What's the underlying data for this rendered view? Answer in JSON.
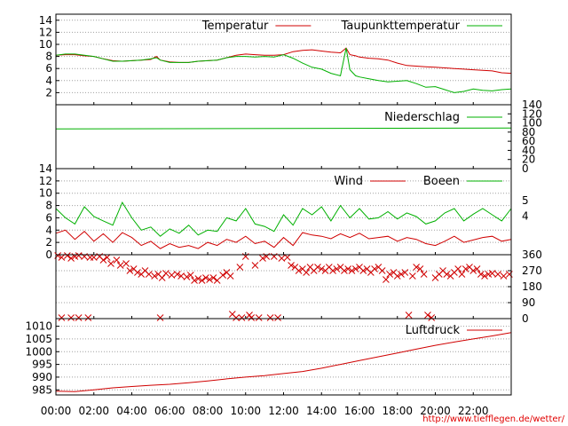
{
  "colors": {
    "red": "#d00000",
    "green": "#00b000",
    "grid": "#a0a0a0"
  },
  "source_url": "http://www.tiefflegen.de/wetter/",
  "x_tick_labels": [
    "00:00",
    "02:00",
    "04:00",
    "06:00",
    "08:00",
    "10:00",
    "12:00",
    "14:00",
    "16:00",
    "18:00",
    "20:00",
    "22:00"
  ],
  "chart_data": [
    {
      "type": "line",
      "xlim": [
        0,
        24
      ],
      "ylim": [
        0,
        15
      ],
      "y_ticks": [
        2,
        4,
        6,
        8,
        10,
        12,
        14
      ],
      "grid": true,
      "legend_position": "top-right",
      "x": [
        0,
        0.5,
        1,
        1.5,
        2,
        2.5,
        3,
        3.5,
        4,
        4.5,
        5,
        5.3,
        5.5,
        6,
        6.5,
        7,
        7.5,
        8,
        8.5,
        9,
        9.5,
        10,
        10.5,
        11,
        11.5,
        12,
        12.5,
        13,
        13.5,
        14,
        14.5,
        15,
        15.3,
        15.5,
        15.8,
        16,
        16.5,
        17,
        17.5,
        18,
        18.5,
        19,
        19.5,
        20,
        20.5,
        21,
        21.5,
        22,
        22.5,
        23,
        23.5,
        24
      ],
      "series": [
        {
          "name": "Temperatur",
          "color": "red",
          "values": [
            8.2,
            8.3,
            8.3,
            8.1,
            8.0,
            7.6,
            7.3,
            7.2,
            7.3,
            7.4,
            7.5,
            8.0,
            7.4,
            7.1,
            7.0,
            7.0,
            7.2,
            7.3,
            7.4,
            7.8,
            8.2,
            8.4,
            8.3,
            8.2,
            8.2,
            8.3,
            8.8,
            9.0,
            9.1,
            8.9,
            8.7,
            8.6,
            9.4,
            8.3,
            8.1,
            7.9,
            7.7,
            7.6,
            7.4,
            6.9,
            6.5,
            6.4,
            6.3,
            6.2,
            6.1,
            6.0,
            5.9,
            5.8,
            5.7,
            5.6,
            5.3,
            5.2
          ]
        },
        {
          "name": "Taupunkttemperatur",
          "color": "green",
          "values": [
            8.2,
            8.4,
            8.4,
            8.2,
            8.0,
            7.6,
            7.2,
            7.2,
            7.3,
            7.4,
            7.6,
            7.8,
            7.4,
            7.0,
            7.0,
            7.0,
            7.2,
            7.3,
            7.4,
            7.8,
            8.0,
            8.0,
            7.9,
            8.0,
            7.9,
            8.3,
            7.7,
            6.9,
            6.2,
            5.9,
            5.2,
            4.8,
            9.4,
            5.8,
            4.8,
            4.6,
            4.3,
            4.0,
            3.8,
            3.9,
            4.0,
            3.5,
            2.9,
            3.0,
            2.5,
            2.0,
            2.2,
            2.6,
            2.4,
            2.3,
            2.5,
            2.6
          ]
        }
      ]
    },
    {
      "type": "line",
      "xlim": [
        0,
        24
      ],
      "ylim": [
        0,
        140
      ],
      "y_ticks": [
        0,
        20,
        40,
        60,
        80,
        100,
        120,
        140
      ],
      "grid": false,
      "legend_position": "top-right",
      "x": [
        0,
        12,
        24
      ],
      "series": [
        {
          "name": "Niederschlag",
          "color": "green",
          "values": [
            87,
            88,
            89
          ]
        }
      ]
    },
    {
      "type": "line",
      "xlim": [
        0,
        24
      ],
      "ylim": [
        0,
        14
      ],
      "y_ticks": [
        0,
        2,
        4,
        6,
        8,
        10,
        12,
        14
      ],
      "y2_ticks": [
        4,
        5
      ],
      "grid": true,
      "legend_position": "top-right",
      "x": [
        0,
        0.5,
        1,
        1.5,
        2,
        2.5,
        3,
        3.5,
        4,
        4.5,
        5,
        5.5,
        6,
        6.5,
        7,
        7.5,
        8,
        8.5,
        9,
        9.5,
        10,
        10.5,
        11,
        11.5,
        12,
        12.5,
        13,
        13.5,
        14,
        14.5,
        15,
        15.5,
        16,
        16.5,
        17,
        17.5,
        18,
        18.5,
        19,
        19.5,
        20,
        20.5,
        21,
        21.5,
        22,
        22.5,
        23,
        23.5,
        24
      ],
      "series": [
        {
          "name": "Wind",
          "color": "red",
          "values": [
            3.5,
            4.0,
            2.5,
            3.8,
            2.2,
            3.4,
            2.0,
            3.6,
            2.8,
            1.5,
            2.2,
            1.0,
            1.8,
            1.2,
            1.5,
            1.0,
            2.0,
            1.5,
            2.5,
            2.0,
            3.0,
            1.8,
            2.2,
            1.2,
            2.8,
            1.5,
            3.6,
            3.2,
            3.0,
            2.6,
            3.4,
            2.8,
            3.5,
            2.6,
            2.8,
            3.0,
            2.2,
            2.8,
            2.5,
            1.8,
            1.5,
            2.2,
            3.0,
            2.0,
            2.4,
            2.8,
            3.0,
            2.2,
            2.5
          ]
        },
        {
          "name": "Boeen",
          "color": "green",
          "values": [
            7.5,
            6.0,
            5.0,
            7.8,
            6.2,
            5.5,
            4.8,
            8.5,
            6.0,
            4.0,
            4.5,
            3.0,
            4.2,
            3.5,
            4.8,
            3.2,
            4.0,
            3.8,
            6.0,
            5.5,
            7.5,
            5.0,
            4.6,
            3.8,
            6.5,
            4.8,
            7.5,
            6.5,
            7.8,
            5.5,
            8.0,
            6.0,
            7.5,
            5.8,
            6.0,
            7.0,
            5.8,
            6.8,
            6.2,
            5.0,
            5.5,
            6.8,
            7.5,
            5.5,
            6.6,
            7.5,
            6.5,
            5.5,
            7.5
          ]
        }
      ]
    },
    {
      "type": "scatter",
      "xlim": [
        0,
        24
      ],
      "ylim": [
        0,
        360
      ],
      "y_ticks": [
        0,
        90,
        180,
        270,
        360
      ],
      "grid": true,
      "marker": "x",
      "points": [
        [
          0.1,
          355
        ],
        [
          0.3,
          345
        ],
        [
          0.3,
          5
        ],
        [
          0.6,
          355
        ],
        [
          0.8,
          340
        ],
        [
          0.8,
          5
        ],
        [
          1.0,
          350
        ],
        [
          1.2,
          355
        ],
        [
          1.2,
          5
        ],
        [
          1.5,
          350
        ],
        [
          1.7,
          5
        ],
        [
          1.8,
          345
        ],
        [
          2.0,
          345
        ],
        [
          2.3,
          350
        ],
        [
          2.5,
          330
        ],
        [
          2.7,
          345
        ],
        [
          2.9,
          310
        ],
        [
          3.2,
          330
        ],
        [
          3.4,
          300
        ],
        [
          3.7,
          310
        ],
        [
          3.9,
          270
        ],
        [
          4.1,
          280
        ],
        [
          4.3,
          260
        ],
        [
          4.5,
          250
        ],
        [
          4.7,
          270
        ],
        [
          4.9,
          250
        ],
        [
          5.2,
          240
        ],
        [
          5.4,
          250
        ],
        [
          5.6,
          230
        ],
        [
          5.8,
          255
        ],
        [
          5.5,
          5
        ],
        [
          6.1,
          245
        ],
        [
          6.4,
          250
        ],
        [
          6.6,
          240
        ],
        [
          6.9,
          235
        ],
        [
          7.1,
          245
        ],
        [
          7.3,
          215
        ],
        [
          7.5,
          225
        ],
        [
          7.7,
          215
        ],
        [
          7.9,
          230
        ],
        [
          8.1,
          220
        ],
        [
          8.3,
          230
        ],
        [
          8.5,
          215
        ],
        [
          8.8,
          245
        ],
        [
          9.0,
          260
        ],
        [
          9.2,
          240
        ],
        [
          9.3,
          25
        ],
        [
          9.5,
          5
        ],
        [
          9.7,
          290
        ],
        [
          9.8,
          5
        ],
        [
          10.0,
          350
        ],
        [
          10.2,
          20
        ],
        [
          10.3,
          5
        ],
        [
          10.5,
          300
        ],
        [
          10.7,
          5
        ],
        [
          10.9,
          340
        ],
        [
          11.1,
          350
        ],
        [
          11.3,
          5
        ],
        [
          11.5,
          350
        ],
        [
          11.7,
          5
        ],
        [
          11.9,
          340
        ],
        [
          12.2,
          345
        ],
        [
          12.4,
          300
        ],
        [
          12.6,
          290
        ],
        [
          12.8,
          270
        ],
        [
          13.0,
          280
        ],
        [
          13.2,
          260
        ],
        [
          13.4,
          290
        ],
        [
          13.6,
          270
        ],
        [
          13.8,
          290
        ],
        [
          14.0,
          280
        ],
        [
          14.2,
          270
        ],
        [
          14.4,
          290
        ],
        [
          14.6,
          270
        ],
        [
          14.8,
          280
        ],
        [
          15.0,
          290
        ],
        [
          15.2,
          270
        ],
        [
          15.4,
          280
        ],
        [
          15.6,
          270
        ],
        [
          15.8,
          280
        ],
        [
          16.0,
          290
        ],
        [
          16.2,
          270
        ],
        [
          16.4,
          280
        ],
        [
          16.6,
          260
        ],
        [
          16.8,
          280
        ],
        [
          17.0,
          290
        ],
        [
          17.2,
          270
        ],
        [
          17.4,
          220
        ],
        [
          17.6,
          250
        ],
        [
          17.8,
          260
        ],
        [
          18.0,
          240
        ],
        [
          18.2,
          250
        ],
        [
          18.4,
          260
        ],
        [
          18.6,
          20
        ],
        [
          18.8,
          240
        ],
        [
          19.0,
          290
        ],
        [
          19.2,
          280
        ],
        [
          19.4,
          250
        ],
        [
          19.6,
          20
        ],
        [
          19.8,
          5
        ],
        [
          20.0,
          230
        ],
        [
          20.2,
          250
        ],
        [
          20.4,
          270
        ],
        [
          20.6,
          250
        ],
        [
          20.8,
          240
        ],
        [
          21.0,
          260
        ],
        [
          21.2,
          280
        ],
        [
          21.4,
          250
        ],
        [
          21.6,
          280
        ],
        [
          21.8,
          290
        ],
        [
          22.0,
          270
        ],
        [
          22.2,
          280
        ],
        [
          22.4,
          250
        ],
        [
          22.6,
          240
        ],
        [
          22.8,
          250
        ],
        [
          23.0,
          255
        ],
        [
          23.3,
          250
        ],
        [
          23.6,
          240
        ],
        [
          23.9,
          250
        ]
      ]
    },
    {
      "type": "line",
      "xlim": [
        0,
        24
      ],
      "ylim": [
        983,
        1013
      ],
      "y_ticks": [
        985,
        990,
        995,
        1000,
        1005,
        1010
      ],
      "grid": true,
      "legend_position": "top-right",
      "x": [
        0,
        1,
        2,
        3,
        4,
        5,
        6,
        7,
        8,
        9,
        10,
        11,
        12,
        13,
        14,
        15,
        16,
        17,
        18,
        19,
        20,
        21,
        22,
        23,
        24
      ],
      "series": [
        {
          "name": "Luftdruck",
          "color": "red",
          "values": [
            984.5,
            984.3,
            985.0,
            985.8,
            986.3,
            986.8,
            987.2,
            987.8,
            988.5,
            989.3,
            990.0,
            990.6,
            991.4,
            992.2,
            993.5,
            995.0,
            996.5,
            998.0,
            999.5,
            1001.0,
            1002.5,
            1003.8,
            1005.0,
            1006.2,
            1007.5
          ]
        }
      ]
    }
  ]
}
